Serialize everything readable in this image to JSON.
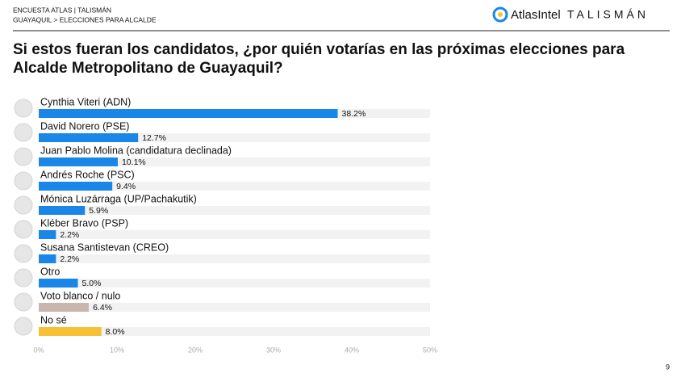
{
  "header": {
    "line1": "ENCUESTA ATLAS | TALISMÁN",
    "line2": "GUAYAQUIL > ELECCIONES PARA ALCALDE",
    "logo_atlas": "AtlasIntel",
    "logo_talisman": "TALISMÁN"
  },
  "page_number": "9",
  "chart_data": {
    "type": "bar",
    "orientation": "horizontal",
    "title": "Si estos fueran los candidatos, ¿por quién votarías en las próximas elecciones para Alcalde Metropolitano de Guayaquil?",
    "categories": [
      "Cynthia Viteri (ADN)",
      "David Norero (PSE)",
      "Juan Pablo Molina (candidatura declinada)",
      "Andrés Roche (PSC)",
      "Mónica Luzárraga (UP/Pachakutik)",
      "Kléber Bravo (PSP)",
      "Susana Santistevan (CREO)",
      "Otro",
      "Voto blanco / nulo",
      "No sé"
    ],
    "values": [
      38.2,
      12.7,
      10.1,
      9.4,
      5.9,
      2.2,
      2.2,
      5.0,
      6.4,
      8.0
    ],
    "value_labels": [
      "38.2%",
      "12.7%",
      "10.1%",
      "9.4%",
      "5.9%",
      "2.2%",
      "2.2%",
      "5.0%",
      "6.4%",
      "8.0%"
    ],
    "colors": [
      "#1a86e8",
      "#1a86e8",
      "#1a86e8",
      "#1a86e8",
      "#1a86e8",
      "#1a86e8",
      "#1a86e8",
      "#1a86e8",
      "#c9b7ae",
      "#f7c137"
    ],
    "xlim": [
      0,
      50
    ],
    "xticks": [
      {
        "value": 0,
        "label": "0%"
      },
      {
        "value": 10,
        "label": "10%"
      },
      {
        "value": 20,
        "label": "20%"
      },
      {
        "value": 30,
        "label": "30%"
      },
      {
        "value": 40,
        "label": "40%"
      },
      {
        "value": 50,
        "label": "50%"
      }
    ],
    "grid": false
  }
}
